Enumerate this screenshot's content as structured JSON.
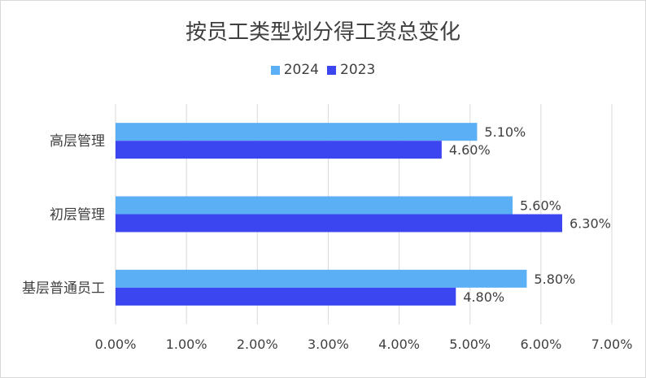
{
  "colors": {
    "series_2024": "#5aaff5",
    "series_2023": "#3c46f0",
    "grid": "#d9d9d9",
    "text": "#404040"
  },
  "chart_data": {
    "type": "bar",
    "orientation": "horizontal",
    "title": "按员工类型划分得工资总变化",
    "categories": [
      "高层管理",
      "初层管理",
      "基层普通员工"
    ],
    "series": [
      {
        "name": "2024",
        "values": [
          5.1,
          5.6,
          5.8
        ],
        "labels": [
          "5.10%",
          "5.60%",
          "5.80%"
        ]
      },
      {
        "name": "2023",
        "values": [
          4.6,
          6.3,
          4.8
        ],
        "labels": [
          "4.60%",
          "6.30%",
          "4.80%"
        ]
      }
    ],
    "xlim": [
      0,
      7
    ],
    "xticks": [
      "0.00%",
      "1.00%",
      "2.00%",
      "3.00%",
      "4.00%",
      "5.00%",
      "6.00%",
      "7.00%"
    ],
    "legend_position": "top",
    "grid": true
  }
}
